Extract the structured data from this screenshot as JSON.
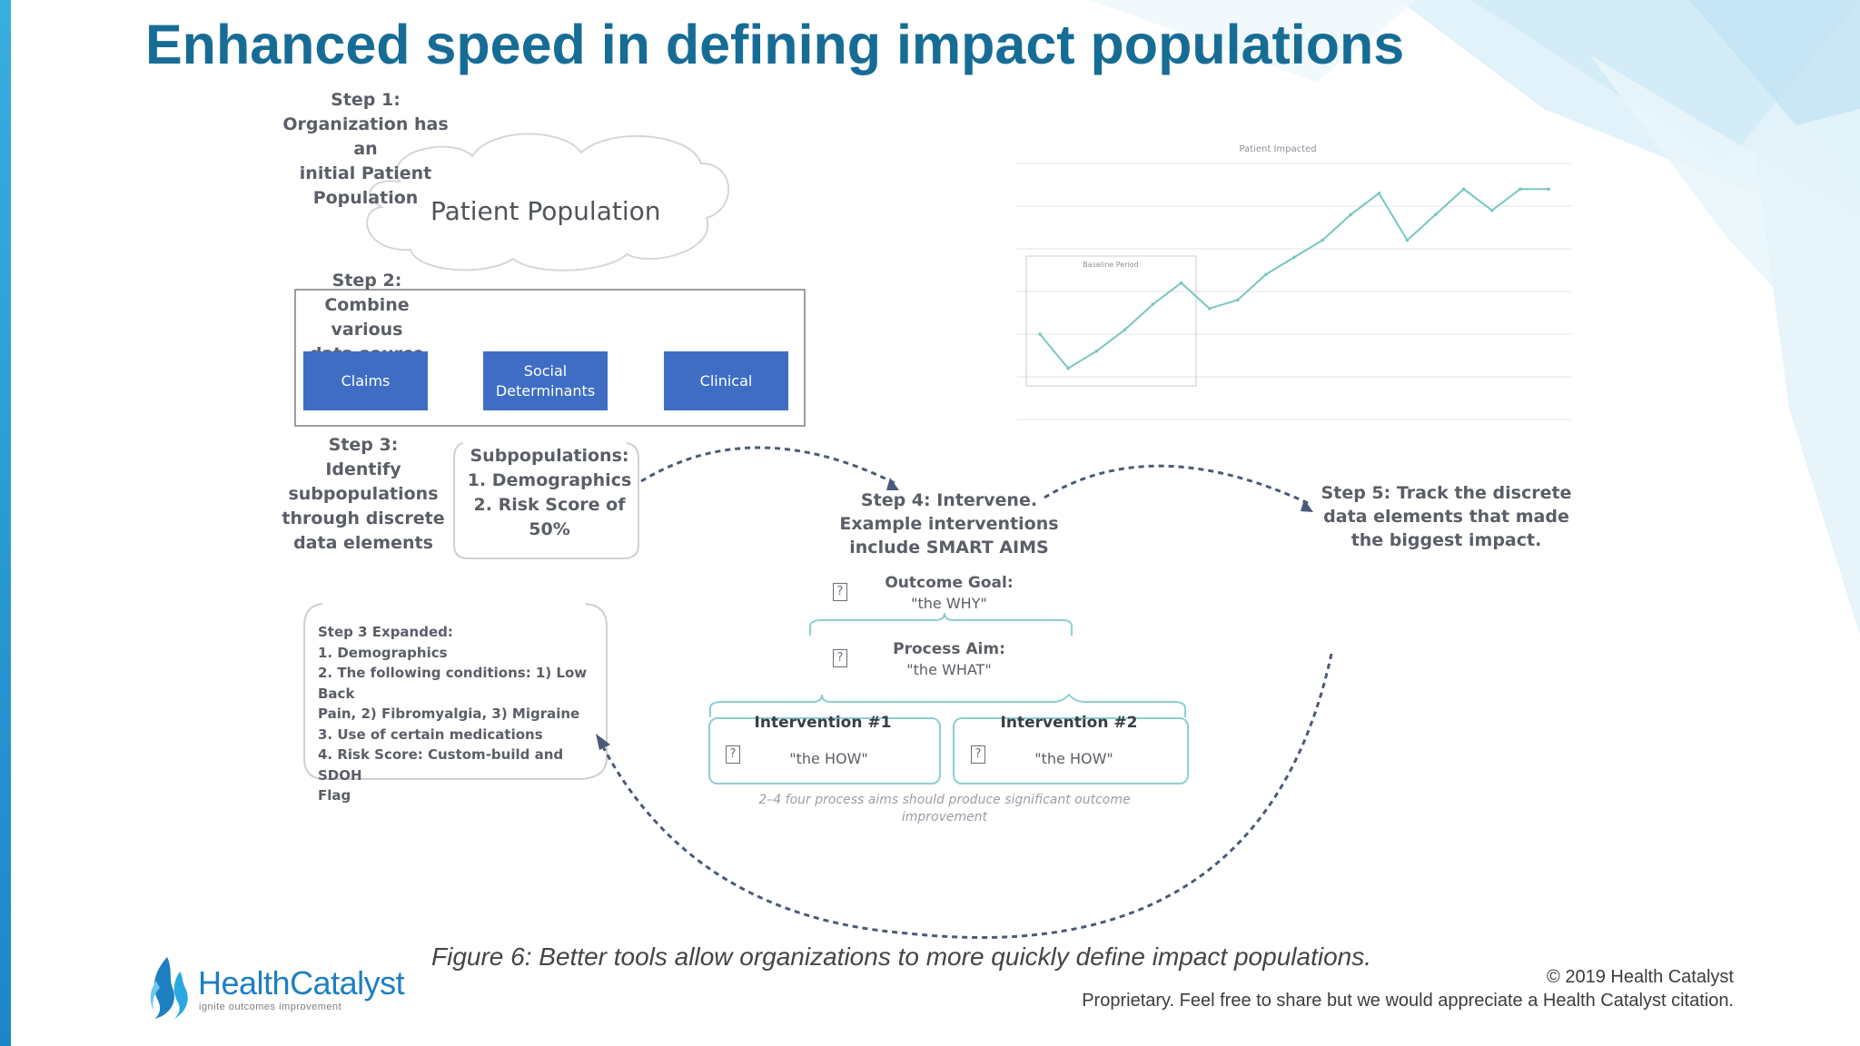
{
  "slide": {
    "title": "Enhanced speed in defining impact populations",
    "caption": "Figure 6: Better tools allow organizations to more quickly define impact populations.",
    "copyright": "© 2019 Health Catalyst",
    "proprietary": "Proprietary. Feel free to share but we would appreciate a Health Catalyst citation."
  },
  "logo": {
    "name": "HealthCatalyst",
    "tagline": "ignite outcomes improvement",
    "colors": {
      "health": "#1d7fc2",
      "catalyst": "#1d7fc2"
    }
  },
  "diagram": {
    "step1": {
      "lines": [
        "Step 1:",
        "Organization has an",
        "initial Patient",
        "Population"
      ]
    },
    "cloud_label": "Patient Population",
    "step2": {
      "lines": [
        "Step 2:",
        "Combine various",
        "data source"
      ]
    },
    "sources": [
      {
        "label": "Claims"
      },
      {
        "label": "Social Determinants"
      },
      {
        "label": "Clinical"
      }
    ],
    "step3": {
      "lines": [
        "Step 3:",
        "Identify",
        "subpopulations",
        "through discrete",
        "data elements"
      ]
    },
    "subpopulations": {
      "lines": [
        "Subpopulations:",
        "1. Demographics",
        "2. Risk Score of",
        "50%"
      ]
    },
    "step3_expanded": {
      "lines": [
        "Step 3 Expanded:",
        "1. Demographics",
        "2. The following conditions: 1) Low Back",
        "Pain, 2) Fibromyalgia, 3) Migraine",
        "3. Use of certain medications",
        "4. Risk Score: Custom-build and SDOH",
        "Flag"
      ]
    },
    "step4": {
      "lines": [
        "Step 4: Intervene.",
        "Example interventions",
        "include SMART AIMS"
      ]
    },
    "step5": {
      "lines": [
        "Step 5: Track the discrete",
        "data elements that made",
        "the biggest impact."
      ]
    },
    "outcome_goal": {
      "title": "Outcome Goal:",
      "subtitle": "\"the WHY\""
    },
    "process_aim": {
      "title": "Process Aim:",
      "subtitle": "\"the WHAT\""
    },
    "intervention1": {
      "title": "Intervention #1",
      "subtitle": "\"the HOW\""
    },
    "intervention2": {
      "title": "Intervention #2",
      "subtitle": "\"the HOW\""
    },
    "note": {
      "lines": [
        "2–4 four process aims should produce significant outcome",
        "improvement"
      ]
    },
    "colors": {
      "blue_box": "#3f6dc4",
      "teal": "#8dcfd2",
      "arrow": "#4a5a78"
    }
  },
  "chart_data": {
    "type": "line",
    "title": "Patient Impacted",
    "annotation": "Baseline Period",
    "series": [
      {
        "values": [
          50,
          42,
          46,
          51,
          57,
          62,
          56,
          58,
          64,
          68,
          72,
          78,
          83,
          72,
          78,
          84,
          79,
          84,
          84
        ]
      }
    ],
    "grid": true,
    "colors": {
      "line": "#79c7bf"
    }
  }
}
